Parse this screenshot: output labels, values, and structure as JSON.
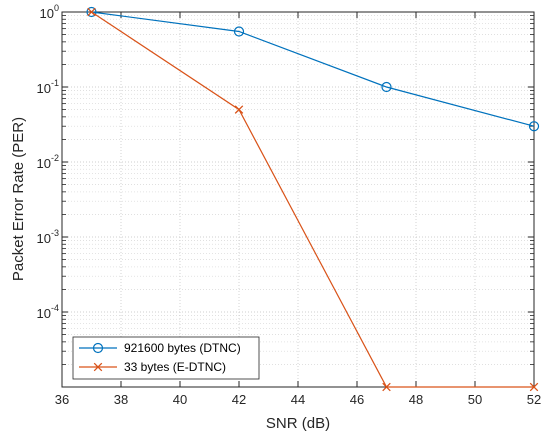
{
  "chart_data": {
    "type": "line",
    "xlabel": "SNR (dB)",
    "ylabel": "Packet Error Rate (PER)",
    "x_scale": "linear",
    "y_scale": "log",
    "xlim": [
      36,
      52
    ],
    "ylim": [
      1e-05,
      1
    ],
    "x_ticks": [
      "36",
      "38",
      "40",
      "42",
      "44",
      "46",
      "48",
      "50",
      "52"
    ],
    "y_ticks": [
      {
        "base": "10",
        "exp": "0",
        "value": 1
      },
      {
        "base": "10",
        "exp": "-1",
        "value": 0.1
      },
      {
        "base": "10",
        "exp": "-2",
        "value": 0.01
      },
      {
        "base": "10",
        "exp": "-3",
        "value": 0.001
      },
      {
        "base": "10",
        "exp": "-4",
        "value": 0.0001
      }
    ],
    "grid": true,
    "minor_grid": true,
    "legend_position": "bottom-left",
    "series": [
      {
        "name": "921600 bytes (DTNC)",
        "color": "#0072BD",
        "marker": "circle",
        "x": [
          37,
          42,
          47,
          52
        ],
        "y": [
          1,
          0.55,
          0.1,
          0.03
        ]
      },
      {
        "name": "33 bytes (E-DTNC)",
        "color": "#D95319",
        "marker": "x",
        "x": [
          37,
          42,
          47,
          52
        ],
        "y": [
          1,
          0.05,
          1e-05,
          1e-05
        ]
      }
    ]
  }
}
